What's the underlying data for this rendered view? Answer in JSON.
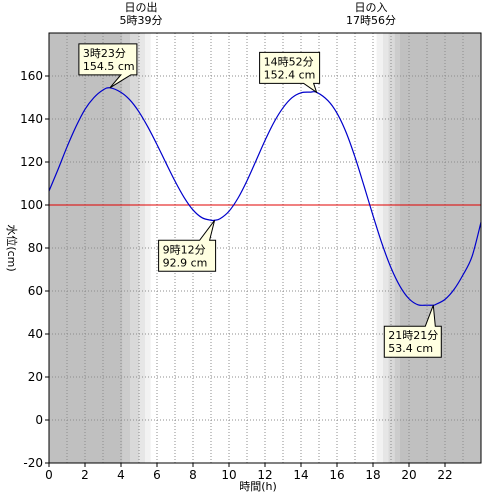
{
  "chart_data": {
    "type": "line",
    "xlabel": "時間(h)",
    "ylabel": "水位(cm)",
    "xlim": [
      0,
      24
    ],
    "ylim": [
      -20,
      180
    ],
    "x_ticks": [
      0,
      2,
      4,
      6,
      8,
      10,
      12,
      14,
      16,
      18,
      20,
      22
    ],
    "y_ticks": [
      -20,
      0,
      20,
      40,
      60,
      80,
      100,
      120,
      140,
      160
    ],
    "reference_line": {
      "value": 100,
      "color": "#e00000"
    },
    "line_color": "#0000cc",
    "series": [
      {
        "x": [
          0,
          0.5,
          1,
          1.5,
          2,
          2.5,
          3,
          3.383,
          4,
          4.5,
          5,
          5.5,
          6,
          6.5,
          7,
          7.5,
          8,
          8.5,
          9,
          9.2,
          9.5,
          10,
          10.5,
          11,
          11.5,
          12,
          12.5,
          13,
          13.5,
          14,
          14.5,
          14.867,
          15.5,
          16,
          16.5,
          17,
          17.5,
          18,
          18.5,
          19,
          19.5,
          20,
          20.5,
          21,
          21.35,
          21.5,
          22,
          22.5,
          23,
          23.5,
          24
        ],
        "y": [
          106.5,
          116.5,
          127.0,
          136.5,
          144.5,
          150.0,
          153.5,
          154.5,
          152.4,
          148.8,
          143.3,
          136.2,
          128.1,
          119.5,
          111.1,
          103.6,
          97.7,
          94.1,
          92.9,
          92.9,
          93.6,
          97.1,
          103.2,
          111.3,
          120.6,
          130.0,
          138.5,
          145.2,
          149.9,
          152.2,
          152.5,
          152.4,
          148.5,
          142.7,
          133.9,
          122.3,
          108.9,
          95.1,
          82.0,
          70.8,
          62.2,
          56.4,
          53.6,
          53.4,
          53.4,
          53.8,
          56.1,
          60.7,
          67.5,
          76.0,
          92.0
        ]
      }
    ],
    "sun": {
      "sunrise_label": "日の出",
      "sunrise_time": "5時39分",
      "sunset_label": "日の入",
      "sunset_time": "17時56分"
    },
    "twilight_bands": {
      "dark_color": "#c0c0c0",
      "bands": [
        {
          "from": 4.1,
          "to": 4.5,
          "color": "#cccccc"
        },
        {
          "from": 4.5,
          "to": 5.0,
          "color": "#d9d9d9"
        },
        {
          "from": 5.0,
          "to": 5.35,
          "color": "#e6e6e6"
        },
        {
          "from": 5.35,
          "to": 5.65,
          "color": "#f2f2f2"
        },
        {
          "from": 18.2,
          "to": 18.55,
          "color": "#f2f2f2"
        },
        {
          "from": 18.55,
          "to": 18.85,
          "color": "#e6e6e6"
        },
        {
          "from": 18.85,
          "to": 19.2,
          "color": "#d9d9d9"
        },
        {
          "from": 19.2,
          "to": 19.5,
          "color": "#cccccc"
        }
      ],
      "dark_ranges": [
        [
          0,
          4.1
        ],
        [
          19.5,
          24
        ]
      ]
    },
    "annotations": [
      {
        "time": "3時23分",
        "value": "154.5 cm",
        "x": 3.383,
        "y": 154.5
      },
      {
        "time": "9時12分",
        "value": "92.9 cm",
        "x": 9.2,
        "y": 92.9
      },
      {
        "time": "14時52分",
        "value": "152.4 cm",
        "x": 14.867,
        "y": 152.4
      },
      {
        "time": "21時21分",
        "value": "53.4 cm",
        "x": 21.35,
        "y": 53.4
      }
    ]
  }
}
